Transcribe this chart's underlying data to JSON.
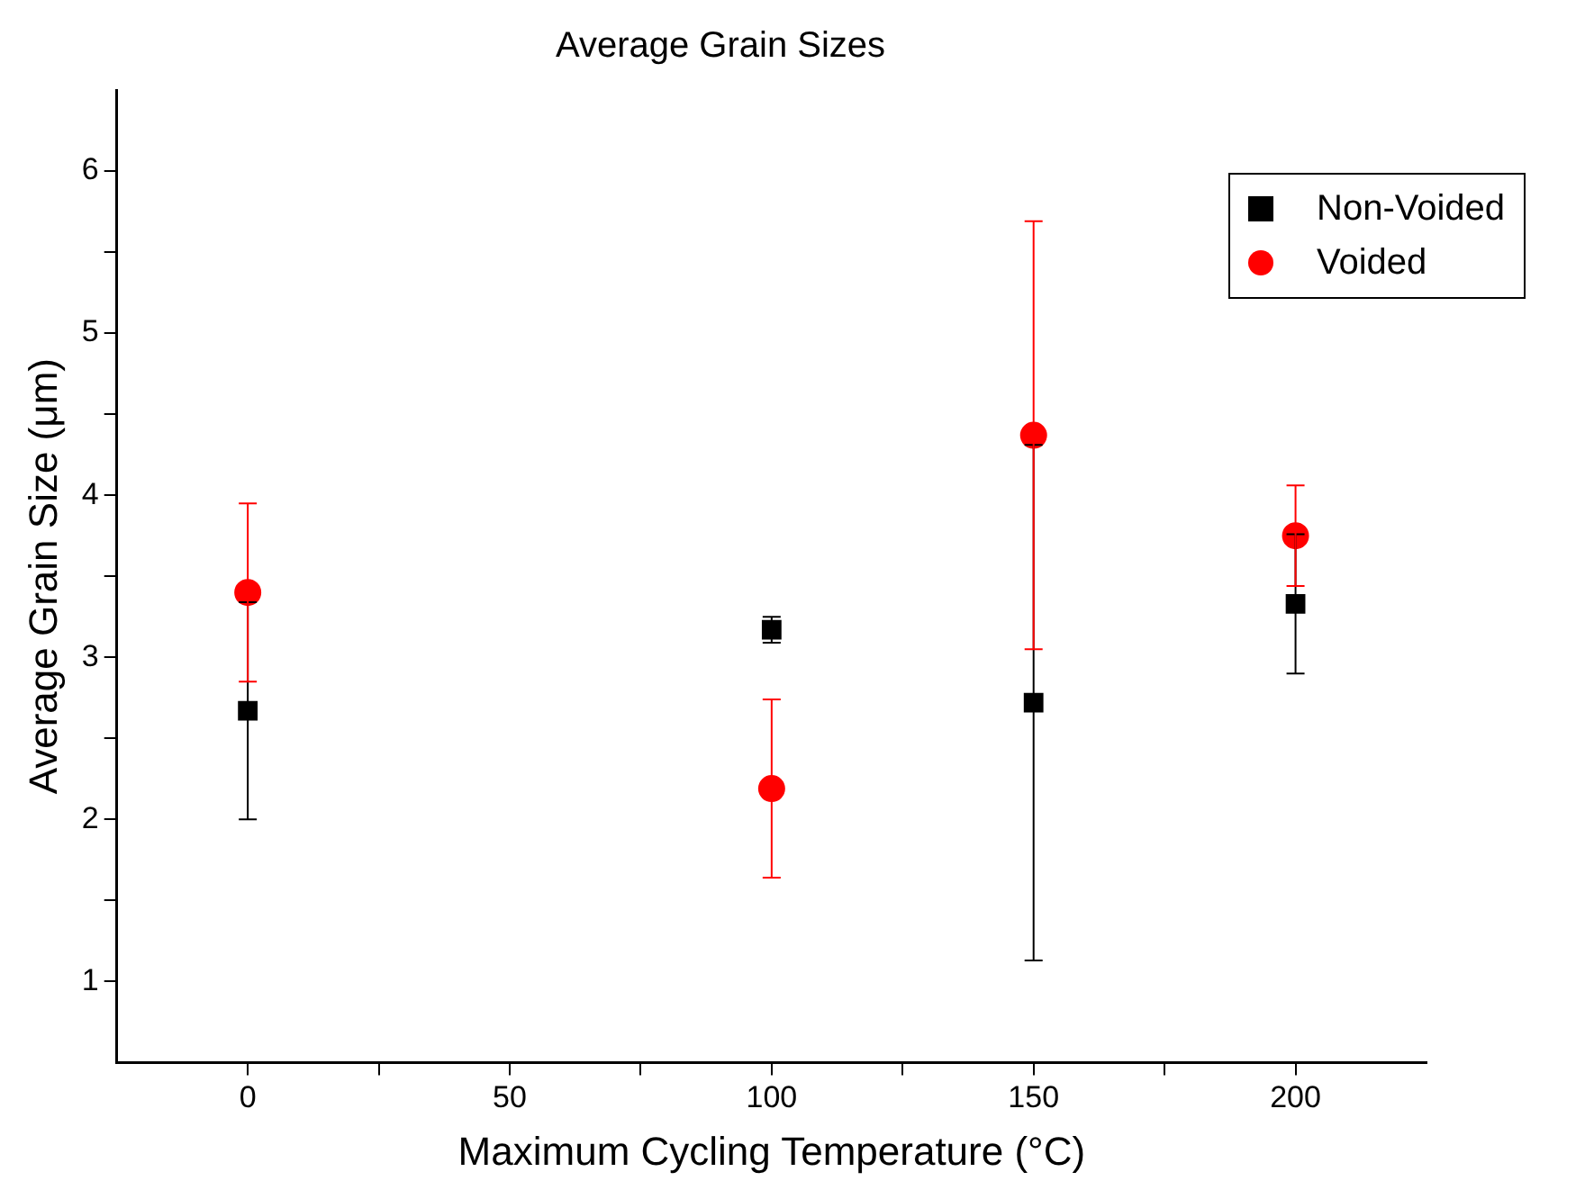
{
  "chart_data": {
    "type": "scatter",
    "title": "Average Grain Sizes",
    "xlabel": "Maximum Cycling Temperature (°C)",
    "ylabel": "Average Grain Size (μm)",
    "x": [
      0,
      100,
      150,
      200
    ],
    "series": [
      {
        "name": "Non-Voided",
        "color": "#000000",
        "marker": "square",
        "values": [
          2.67,
          3.17,
          2.72,
          3.33
        ],
        "errors": [
          0.67,
          0.08,
          1.59,
          0.43
        ]
      },
      {
        "name": "Voided",
        "color": "#ff0000",
        "marker": "circle",
        "values": [
          3.4,
          2.19,
          4.37,
          3.75
        ],
        "errors": [
          0.55,
          0.55,
          1.32,
          0.31
        ]
      }
    ],
    "xlim": [
      -25,
      225
    ],
    "xticks": [
      0,
      {
        "value": 25,
        "label": null
      },
      50,
      {
        "value": 75,
        "label": null
      },
      100,
      {
        "value": 125,
        "label": null
      },
      150,
      {
        "value": 175,
        "label": null
      },
      200
    ],
    "ylim": [
      0.5,
      6.5
    ],
    "yticks": [
      1,
      {
        "value": 1.5,
        "label": null
      },
      2,
      {
        "value": 2.5,
        "label": null
      },
      3,
      {
        "value": 3.5,
        "label": null
      },
      4,
      {
        "value": 4.5,
        "label": null
      },
      5,
      {
        "value": 5.5,
        "label": null
      },
      6
    ],
    "grid": false,
    "legend": "top right"
  }
}
